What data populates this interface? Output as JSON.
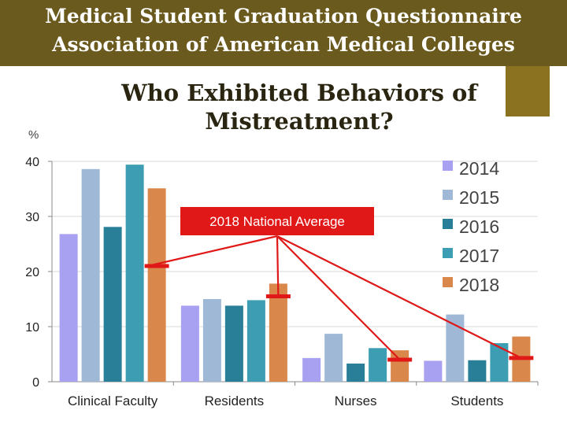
{
  "header": {
    "line1": "Medical Student Graduation Questionnaire",
    "line2": "Association of American Medical Colleges"
  },
  "chart_data": {
    "type": "bar",
    "title_line1": "Who Exhibited Behaviors of",
    "title_line2": "Mistreatment?",
    "ylabel": "%",
    "ylim": [
      0,
      40
    ],
    "yticks": [
      0,
      10,
      20,
      30,
      40
    ],
    "grid": true,
    "legend_position": "right",
    "categories": [
      "Clinical Faculty",
      "Residents",
      "Nurses",
      "Students"
    ],
    "series": [
      {
        "name": "2014",
        "color": "#a8a0f0",
        "values": [
          26.8,
          13.8,
          4.3,
          3.8
        ]
      },
      {
        "name": "2015",
        "color": "#9eb8d6",
        "values": [
          38.6,
          15.0,
          8.7,
          12.2
        ]
      },
      {
        "name": "2016",
        "color": "#2a7f98",
        "values": [
          28.1,
          13.8,
          3.3,
          3.9
        ]
      },
      {
        "name": "2017",
        "color": "#3d9db2",
        "values": [
          39.4,
          14.8,
          6.1,
          7.0
        ]
      },
      {
        "name": "2018",
        "color": "#d9874a",
        "values": [
          35.1,
          17.8,
          5.7,
          8.2
        ]
      }
    ],
    "national_average": {
      "label": "2018 National Average",
      "values": [
        21.0,
        15.5,
        4.0,
        4.3
      ],
      "color": "#e01818"
    }
  }
}
